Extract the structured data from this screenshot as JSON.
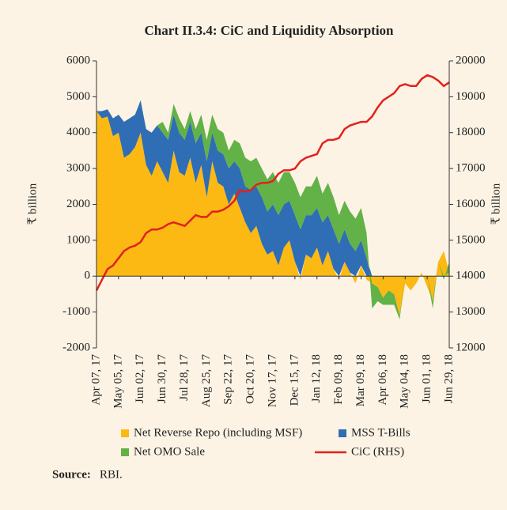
{
  "chart_data": {
    "type": "stacked_area_line",
    "title": "Chart II.3.4: CiC and Liquidity Absorption",
    "ylabel": "₹ billion",
    "y2label": "₹ billion",
    "source_label": "Source:",
    "source": "RBI.",
    "categories": [
      "Apr 07, 17",
      null,
      null,
      null,
      "May 05, 17",
      null,
      null,
      null,
      "Jun 02, 17",
      null,
      null,
      null,
      "Jun 30, 17",
      null,
      null,
      null,
      "Jul 28, 17",
      null,
      null,
      null,
      "Aug 25, 17",
      null,
      null,
      null,
      "Sep 22, 17",
      null,
      null,
      null,
      "Oct 20, 17",
      null,
      null,
      null,
      "Nov 17, 17",
      null,
      null,
      null,
      "Dec 15, 17",
      null,
      null,
      null,
      "Jan 12, 18",
      null,
      null,
      null,
      "Feb 09, 18",
      null,
      null,
      null,
      "Mar 09, 18",
      null,
      null,
      null,
      "Apr 06, 18",
      null,
      null,
      null,
      "May 04, 18",
      null,
      null,
      null,
      "Jun 01, 18",
      null,
      null,
      null,
      "Jun 29, 18"
    ],
    "series": [
      {
        "name": "Net Reverse Repo (including MSF)",
        "color": "#fdb913",
        "kind": "area",
        "values": [
          4600,
          4400,
          4450,
          3900,
          4000,
          3300,
          3400,
          3600,
          4000,
          3100,
          2800,
          3200,
          2900,
          2600,
          3500,
          2900,
          2800,
          3300,
          2600,
          3100,
          2200,
          3200,
          2600,
          2500,
          2000,
          2300,
          1900,
          1500,
          1200,
          1400,
          900,
          600,
          700,
          300,
          800,
          1000,
          400,
          -100,
          600,
          500,
          800,
          300,
          700,
          200,
          -100,
          400,
          100,
          -200,
          300,
          -100,
          -200,
          -300,
          -600,
          -400,
          -500,
          -1100,
          -200,
          -400,
          -200,
          100,
          -300,
          -700,
          400,
          700,
          100
        ]
      },
      {
        "name": "MSS T-Bills",
        "color": "#2f6db5",
        "kind": "area",
        "values": [
          0,
          200,
          200,
          500,
          500,
          1000,
          1000,
          900,
          900,
          1000,
          1200,
          1000,
          1100,
          1200,
          1000,
          1100,
          1000,
          1000,
          1100,
          900,
          1000,
          800,
          900,
          900,
          1000,
          900,
          1100,
          1000,
          1200,
          1100,
          1300,
          1200,
          1300,
          1400,
          1200,
          1100,
          1300,
          1300,
          1100,
          1200,
          1100,
          1200,
          1000,
          1100,
          900,
          900,
          800,
          700,
          700,
          500,
          0,
          0,
          0,
          0,
          0,
          0,
          0,
          0,
          0,
          0,
          0,
          0,
          0,
          0,
          0
        ]
      },
      {
        "name": "Net OMO Sale",
        "color": "#62b247",
        "kind": "area",
        "values": [
          0,
          0,
          0,
          0,
          0,
          0,
          0,
          0,
          0,
          0,
          0,
          0,
          300,
          200,
          300,
          400,
          300,
          300,
          400,
          500,
          600,
          500,
          600,
          600,
          500,
          600,
          700,
          800,
          800,
          800,
          800,
          900,
          900,
          900,
          900,
          800,
          900,
          900,
          800,
          800,
          900,
          800,
          900,
          900,
          800,
          800,
          900,
          900,
          900,
          700,
          -700,
          -400,
          -200,
          -400,
          -300,
          -100,
          0,
          0,
          0,
          0,
          0,
          -200,
          0,
          -100,
          300
        ]
      },
      {
        "name": "CiC (RHS)",
        "color": "#e3211c",
        "kind": "line",
        "axis": "y2",
        "values": [
          13600,
          13900,
          14200,
          14300,
          14500,
          14700,
          14800,
          14850,
          14950,
          15200,
          15300,
          15300,
          15350,
          15450,
          15500,
          15450,
          15400,
          15550,
          15700,
          15650,
          15650,
          15800,
          15800,
          15850,
          15950,
          16100,
          16400,
          16350,
          16400,
          16550,
          16600,
          16600,
          16650,
          16850,
          16950,
          16950,
          17000,
          17200,
          17300,
          17350,
          17400,
          17700,
          17800,
          17800,
          17850,
          18100,
          18200,
          18250,
          18300,
          18300,
          18450,
          18700,
          18900,
          19000,
          19100,
          19300,
          19350,
          19300,
          19300,
          19500,
          19600,
          19550,
          19450,
          19300,
          19400
        ]
      }
    ],
    "ylim": [
      -2000,
      6000
    ],
    "yticks": [
      -2000,
      -1000,
      0,
      1000,
      2000,
      3000,
      4000,
      5000,
      6000
    ],
    "y2lim": [
      12000,
      20000
    ],
    "y2ticks": [
      12000,
      13000,
      14000,
      15000,
      16000,
      17000,
      18000,
      19000,
      20000
    ],
    "legend": "bottom"
  }
}
